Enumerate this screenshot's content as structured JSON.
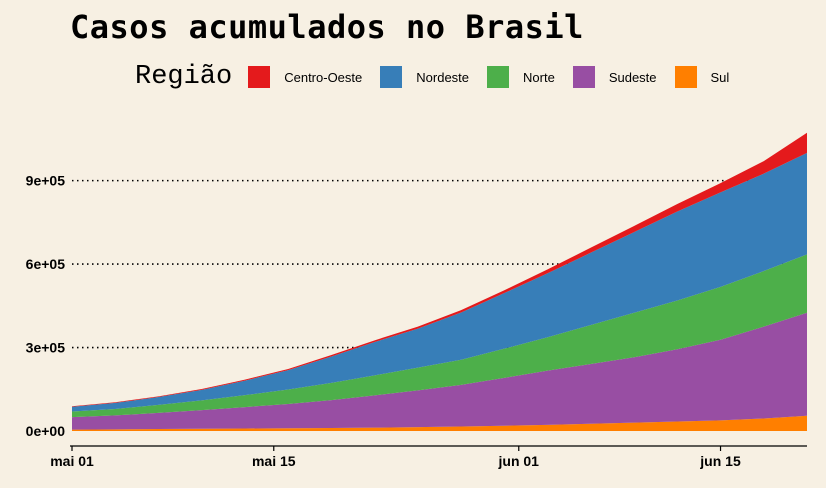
{
  "chart_data": {
    "type": "area",
    "stacked": true,
    "title": "Casos acumulados no Brasil",
    "legend": {
      "title": "Região",
      "placement": "top",
      "entries": [
        {
          "name": "Centro-Oeste",
          "color": "#e41a1c"
        },
        {
          "name": "Nordeste",
          "color": "#377eb8"
        },
        {
          "name": "Norte",
          "color": "#4daf4a"
        },
        {
          "name": "Sudeste",
          "color": "#984ea3"
        },
        {
          "name": "Sul",
          "color": "#ff7f00"
        }
      ]
    },
    "xlabel": "",
    "ylabel": "",
    "x_start": "2020-05-01",
    "x": [
      "2020-05-01",
      "2020-05-04",
      "2020-05-07",
      "2020-05-10",
      "2020-05-13",
      "2020-05-16",
      "2020-05-19",
      "2020-05-22",
      "2020-05-25",
      "2020-05-28",
      "2020-05-31",
      "2020-06-03",
      "2020-06-06",
      "2020-06-09",
      "2020-06-12",
      "2020-06-15",
      "2020-06-18",
      "2020-06-21"
    ],
    "x_ticks": [
      {
        "date": "2020-05-01",
        "label": "mai 01"
      },
      {
        "date": "2020-05-15",
        "label": "mai 15"
      },
      {
        "date": "2020-06-01",
        "label": "jun 01"
      },
      {
        "date": "2020-06-15",
        "label": "jun 15"
      }
    ],
    "y_ticks": [
      {
        "value": 0,
        "label": "0e+00"
      },
      {
        "value": 300000,
        "label": "3e+05"
      },
      {
        "value": 600000,
        "label": "6e+05"
      },
      {
        "value": 900000,
        "label": "9e+05"
      }
    ],
    "ylim": [
      0,
      1100000
    ],
    "grid": "horizontal dotted",
    "series": [
      {
        "name": "Sul",
        "values": [
          5000,
          6000,
          7000,
          8000,
          9000,
          10000,
          11000,
          12000,
          14000,
          16000,
          19000,
          22000,
          26000,
          30000,
          34000,
          38000,
          45000,
          55000
        ]
      },
      {
        "name": "Sudeste",
        "values": [
          45000,
          50000,
          58000,
          67000,
          77000,
          87000,
          100000,
          116000,
          132000,
          150000,
          172000,
          195000,
          215000,
          235000,
          260000,
          290000,
          330000,
          370000
        ]
      },
      {
        "name": "Norte",
        "values": [
          20000,
          23000,
          29000,
          35000,
          43000,
          52000,
          62000,
          72000,
          82000,
          90000,
          105000,
          120000,
          140000,
          160000,
          175000,
          190000,
          200000,
          210000
        ]
      },
      {
        "name": "Nordeste",
        "values": [
          17000,
          22000,
          28000,
          38000,
          52000,
          70000,
          95000,
          120000,
          140000,
          170000,
          200000,
          230000,
          260000,
          290000,
          320000,
          340000,
          350000,
          365000
        ]
      },
      {
        "name": "Centro-Oeste",
        "values": [
          2000,
          2200,
          2500,
          3000,
          3500,
          4000,
          5000,
          6000,
          7000,
          8500,
          10000,
          14000,
          18000,
          22000,
          27000,
          33000,
          45000,
          72000
        ]
      }
    ]
  }
}
